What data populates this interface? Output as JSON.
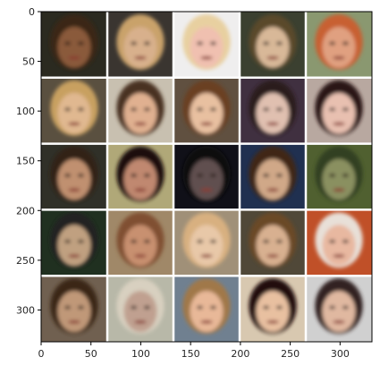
{
  "figure": {
    "description_type": "image grid displayed with axes",
    "grid": {
      "rows": 5,
      "cols": 5
    },
    "image_extent": {
      "x": [
        0,
        332
      ],
      "y": [
        332,
        0
      ]
    },
    "x_ticks": [
      0,
      50,
      100,
      150,
      200,
      250,
      300
    ],
    "y_ticks": [
      0,
      50,
      100,
      150,
      200,
      250,
      300
    ],
    "tiles": [
      {
        "bg": "#2b2a20",
        "face": "#8a5a3a",
        "hair": "#3a2616"
      },
      {
        "bg": "#3a3530",
        "face": "#d8b08c",
        "hair": "#c9a26a"
      },
      {
        "bg": "#efeeee",
        "face": "#f0c0b0",
        "hair": "#e8d0a0"
      },
      {
        "bg": "#3b4030",
        "face": "#d8b898",
        "hair": "#5a4a2a"
      },
      {
        "bg": "#8a9870",
        "face": "#e0a080",
        "hair": "#c86030"
      },
      {
        "bg": "#5a5040",
        "face": "#e0b890",
        "hair": "#c8a060"
      },
      {
        "bg": "#c8c0b0",
        "face": "#e0b090",
        "hair": "#4a3020"
      },
      {
        "bg": "#605040",
        "face": "#e8c0a0",
        "hair": "#6a4020"
      },
      {
        "bg": "#403040",
        "face": "#e0c0b0",
        "hair": "#2a1a1a"
      },
      {
        "bg": "#b8a8a0",
        "face": "#e8c0b0",
        "hair": "#2a1818"
      },
      {
        "bg": "#303028",
        "face": "#c09070",
        "hair": "#302018"
      },
      {
        "bg": "#b0a878",
        "face": "#c08870",
        "hair": "#1a1010"
      },
      {
        "bg": "#101018",
        "face": "#605050",
        "hair": "#101010"
      },
      {
        "bg": "#203050",
        "face": "#d0a888",
        "hair": "#402818"
      },
      {
        "bg": "#506030",
        "face": "#8a9060",
        "hair": "#304020"
      },
      {
        "bg": "#203020",
        "face": "#c0a080",
        "hair": "#202020"
      },
      {
        "bg": "#a08868",
        "face": "#c89070",
        "hair": "#805030"
      },
      {
        "bg": "#a09078",
        "face": "#e8c8a8",
        "hair": "#d8b080"
      },
      {
        "bg": "#504838",
        "face": "#d8b090",
        "hair": "#6a4a28"
      },
      {
        "bg": "#c05028",
        "face": "#e8b8a0",
        "hair": "#e8e0d8"
      },
      {
        "bg": "#706050",
        "face": "#c09878",
        "hair": "#3a2818"
      },
      {
        "bg": "#b8b8a8",
        "face": "#c0a090",
        "hair": "#d8d0c0"
      },
      {
        "bg": "#708090",
        "face": "#e8b898",
        "hair": "#a07848"
      },
      {
        "bg": "#d8c8b0",
        "face": "#e8c0a0",
        "hair": "#201010"
      },
      {
        "bg": "#d0d0d0",
        "face": "#e0b8a0",
        "hair": "#302020"
      }
    ]
  }
}
